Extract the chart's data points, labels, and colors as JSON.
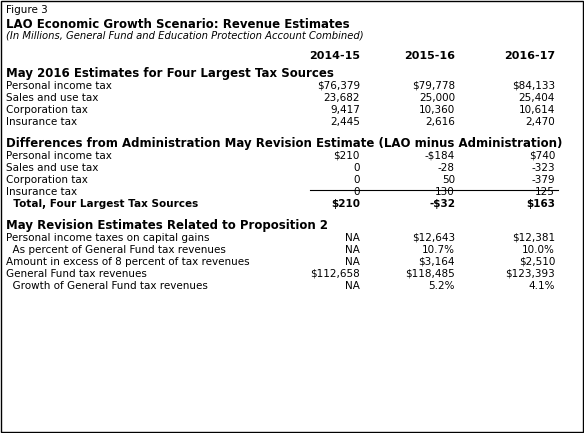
{
  "figure_label": "Figure 3",
  "title": "LAO Economic Growth Scenario: Revenue Estimates",
  "subtitle": "(In Millions, General Fund and Education Protection Account Combined)",
  "col_headers": [
    "2014-15",
    "2015-16",
    "2016-17"
  ],
  "section1_header": "May 2016 Estimates for Four Largest Tax Sources",
  "section1_rows": [
    [
      "Personal income tax",
      "$76,379",
      "$79,778",
      "$84,133"
    ],
    [
      "Sales and use tax",
      "23,682",
      "25,000",
      "25,404"
    ],
    [
      "Corporation tax",
      "9,417",
      "10,360",
      "10,614"
    ],
    [
      "Insurance tax",
      "2,445",
      "2,616",
      "2,470"
    ]
  ],
  "section2_header": "Differences from Administration May Revision Estimate (LAO minus Administration)",
  "section2_rows": [
    [
      "Personal income tax",
      "$210",
      "-$184",
      "$740"
    ],
    [
      "Sales and use tax",
      "0",
      "-28",
      "-323"
    ],
    [
      "Corporation tax",
      "0",
      "50",
      "-379"
    ],
    [
      "Insurance tax",
      "0",
      "130",
      "125"
    ]
  ],
  "section2_total_row": [
    "  Total, Four Largest Tax Sources",
    "$210",
    "-$32",
    "$163"
  ],
  "section3_header": "May Revision Estimates Related to Proposition 2",
  "section3_rows": [
    [
      "Personal income taxes on capital gains",
      "NA",
      "$12,643",
      "$12,381"
    ],
    [
      "  As percent of General Fund tax revenues",
      "NA",
      "10.7%",
      "10.0%"
    ],
    [
      "Amount in excess of 8 percent of tax revenues",
      "NA",
      "$3,164",
      "$2,510"
    ],
    [
      "General Fund tax revenues",
      "$112,658",
      "$118,485",
      "$123,393"
    ],
    [
      "  Growth of General Fund tax revenues",
      "NA",
      "5.2%",
      "4.1%"
    ]
  ]
}
